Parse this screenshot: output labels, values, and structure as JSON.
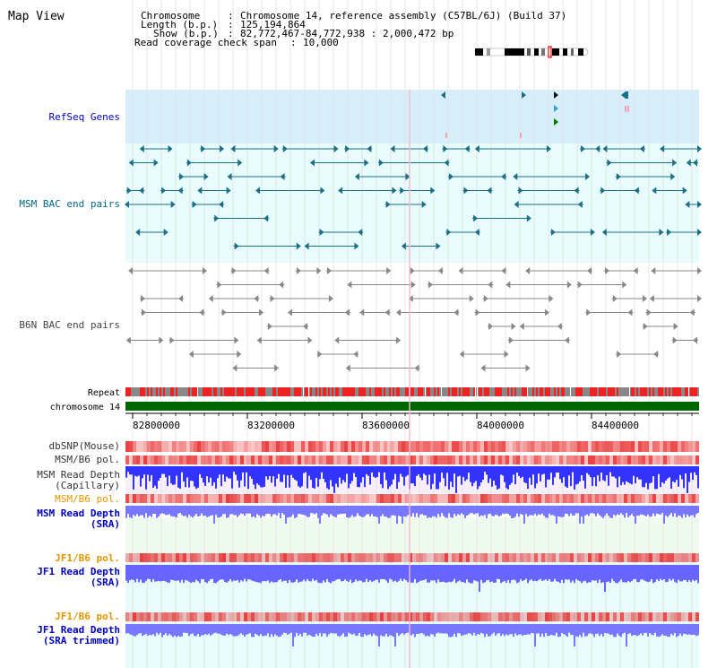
{
  "view_title": "Map View",
  "info": {
    "chromosome_label": "Chromosome",
    "chromosome_value": "Chromosome 14, reference assembly (C57BL/6J) (Build 37)",
    "length_label": "Length (b.p.)",
    "length_value": "125,194,864",
    "show_label": "Show (b.p.)",
    "show_value": "82,772,467-84,772,938 : 2,000,472 bp",
    "coverage_label": "Read coverage check span",
    "coverage_value": "10,000"
  },
  "tracks": {
    "refseq": "RefSeq Genes",
    "msm_bac": "MSM BAC end pairs",
    "b6n_bac": "B6N BAC end pairs",
    "repeat": "Repeat",
    "chromosome": "chromosome 14",
    "dbsnp": "dbSNP(Mouse)",
    "msm_b6_pol_1": "MSM/B6 pol.",
    "msm_read_depth_cap_1": "MSM Read Depth",
    "msm_read_depth_cap_2": "(Capillary)",
    "msm_b6_pol_2": "MSM/B6 pol.",
    "msm_read_depth_sra_1": "MSM Read Depth",
    "msm_read_depth_sra_2": "(SRA)",
    "jf1_b6_pol_1": "JF1/B6 pol.",
    "jf1_read_depth_sra_1": "JF1 Read Depth",
    "jf1_read_depth_sra_2": "(SRA)",
    "jf1_b6_pol_2": "JF1/B6 pol.",
    "jf1_read_depth_trim_1": "JF1 Read Depth",
    "jf1_read_depth_trim_2": "(SRA trimmed)"
  },
  "ruler": {
    "ticks": [
      "82800000",
      "83200000",
      "83600000",
      "84000000",
      "84400000"
    ]
  },
  "colors": {
    "refseq_bg": "#d6eefa",
    "msm_bg": "#e8fcfc",
    "msm_feature": "#1a6e86",
    "b6n_feature": "#888888",
    "repeat_red": "#ee2222",
    "repeat_grey": "#888888",
    "chromosome_green": "#006600",
    "polymorphism": "#f08080",
    "depth_blue": "#4040ff",
    "depth_light": "#8888ff",
    "label_orange": "#e69500",
    "label_blue": "#0000c0",
    "label_teal": "#006688"
  }
}
